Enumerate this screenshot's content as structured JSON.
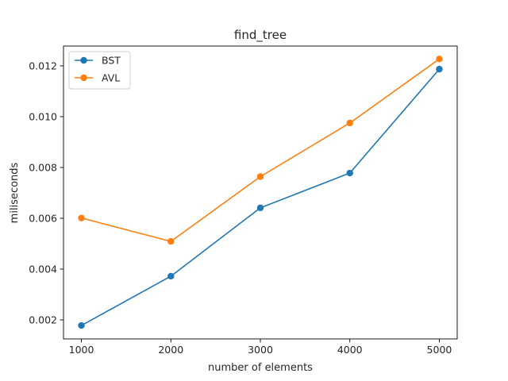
{
  "chart_data": {
    "type": "line",
    "title": "find_tree",
    "xlabel": "number of elements",
    "ylabel": "miliseconds",
    "x": [
      1000,
      2000,
      3000,
      4000,
      5000
    ],
    "xticks": [
      1000,
      2000,
      3000,
      4000,
      5000
    ],
    "xtick_labels": [
      "1000",
      "2000",
      "3000",
      "4000",
      "5000"
    ],
    "yticks": [
      0.002,
      0.004,
      0.006,
      0.008,
      0.01,
      0.012
    ],
    "ytick_labels": [
      "0.002",
      "0.004",
      "0.006",
      "0.008",
      "0.010",
      "0.012"
    ],
    "xlim": [
      800,
      5200
    ],
    "ylim": [
      0.00125,
      0.01278
    ],
    "grid": false,
    "legend": "upper-left",
    "series": [
      {
        "name": "BST",
        "color": "#1f77b4",
        "marker": "circle",
        "values": [
          0.00178,
          0.00372,
          0.00641,
          0.00778,
          0.01187
        ]
      },
      {
        "name": "AVL",
        "color": "#ff7f0e",
        "marker": "circle",
        "values": [
          0.00601,
          0.00509,
          0.00764,
          0.00975,
          0.01227
        ]
      }
    ]
  }
}
